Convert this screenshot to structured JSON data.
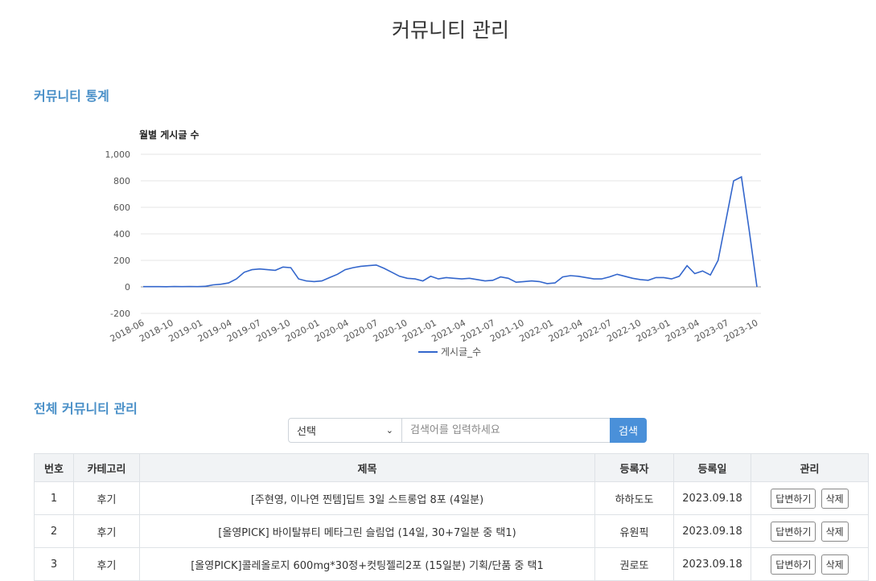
{
  "page": {
    "title": "커뮤니티 관리",
    "stats_title": "커뮤니티 통계",
    "manage_title": "전체 커뮤니티 관리"
  },
  "colors": {
    "accent": "#4a90c8",
    "line": "#3366cc",
    "button": "#4a90d9"
  },
  "chart_data": {
    "type": "line",
    "title": "월별 게시글 수",
    "xlabel": "",
    "ylabel": "",
    "ylim": [
      -200,
      1000
    ],
    "yticks": [
      "1,000",
      "800",
      "600",
      "400",
      "200",
      "0",
      "-200"
    ],
    "xticks": [
      "2018-06",
      "2018-10",
      "2019-01",
      "2019-04",
      "2019-07",
      "2019-10",
      "2020-01",
      "2020-04",
      "2020-07",
      "2020-10",
      "2021-01",
      "2021-04",
      "2021-07",
      "2021-10",
      "2022-01",
      "2022-04",
      "2022-07",
      "2022-10",
      "2023-01",
      "2023-04",
      "2023-07",
      "2023-10"
    ],
    "grid": true,
    "legend": "bottom",
    "series": [
      {
        "name": "게시글_수",
        "values": [
          2,
          2,
          2,
          1,
          3,
          2,
          3,
          2,
          4,
          15,
          20,
          30,
          60,
          110,
          130,
          135,
          130,
          125,
          150,
          145,
          60,
          45,
          40,
          45,
          70,
          95,
          130,
          145,
          155,
          160,
          165,
          140,
          110,
          80,
          65,
          60,
          45,
          80,
          60,
          70,
          65,
          60,
          65,
          55,
          45,
          50,
          75,
          65,
          35,
          40,
          45,
          40,
          25,
          30,
          75,
          85,
          80,
          70,
          60,
          60,
          75,
          95,
          80,
          65,
          55,
          50,
          70,
          70,
          60,
          80,
          160,
          100,
          120,
          90,
          200,
          500,
          800,
          830,
          430,
          0
        ]
      }
    ]
  },
  "search": {
    "select_value": "선택",
    "placeholder": "검색어를 입력하세요",
    "button_label": "검색"
  },
  "table": {
    "headers": [
      "번호",
      "카테고리",
      "제목",
      "등록자",
      "등록일",
      "관리"
    ],
    "reply_label": "답변하기",
    "delete_label": "삭제",
    "rows": [
      {
        "no": "1",
        "category": "후기",
        "title": "[주현영, 이나연 찐템]딥트 3일 스트롱업 8포 (4일분)",
        "author": "하하도도",
        "date": "2023.09.18"
      },
      {
        "no": "2",
        "category": "후기",
        "title": "[올영PICK] 바이탈뷰티 메타그린 슬림업 (14일, 30+7일분 중 택1)",
        "author": "유원픽",
        "date": "2023.09.18"
      },
      {
        "no": "3",
        "category": "후기",
        "title": "[올영PICK]콜레올로지 600mg*30정+컷팅젤리2포 (15일분) 기획/단품 중 택1",
        "author": "권로또",
        "date": "2023.09.18"
      }
    ]
  }
}
